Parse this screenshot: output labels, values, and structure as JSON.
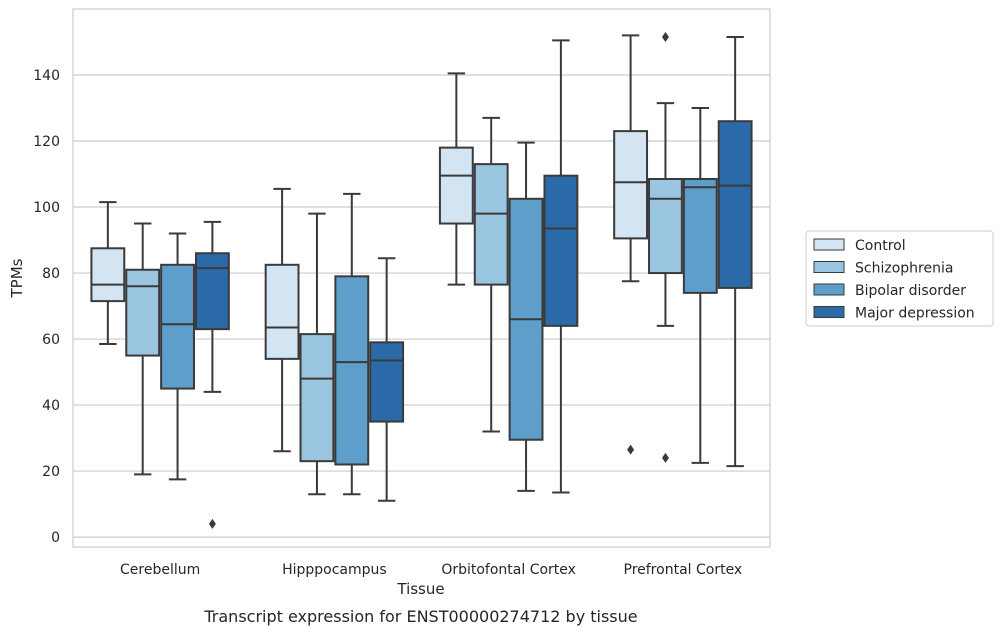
{
  "chart_data": {
    "type": "box",
    "xlabel": "Tissue",
    "ylabel": "TPMs",
    "caption": "Transcript expression for ENST00000274712 by tissue",
    "categories": [
      "Cerebellum",
      "Hipppocampus",
      "Orbitofontal Cortex",
      "Prefrontal Cortex"
    ],
    "ylim": [
      -3,
      160
    ],
    "yticks": [
      0,
      20,
      40,
      60,
      80,
      100,
      120,
      140
    ],
    "grid": "horizontal",
    "legend_position": "right",
    "series": [
      {
        "name": "Control",
        "color": "#d3e4f3",
        "boxes": [
          {
            "whislo": 58.5,
            "q1": 71.5,
            "med": 76.5,
            "q3": 87.5,
            "whishi": 101.5,
            "fliers": []
          },
          {
            "whislo": 26,
            "q1": 54,
            "med": 63.5,
            "q3": 82.5,
            "whishi": 105.5,
            "fliers": []
          },
          {
            "whislo": 76.5,
            "q1": 95,
            "med": 109.5,
            "q3": 118,
            "whishi": 140.5,
            "fliers": []
          },
          {
            "whislo": 77.5,
            "q1": 90.5,
            "med": 107.5,
            "q3": 123,
            "whishi": 152,
            "fliers": [
              26.5
            ]
          }
        ]
      },
      {
        "name": "Schizophrenia",
        "color": "#9ac5e0",
        "boxes": [
          {
            "whislo": 19,
            "q1": 55,
            "med": 76,
            "q3": 81,
            "whishi": 95,
            "fliers": []
          },
          {
            "whislo": 13,
            "q1": 23,
            "med": 48,
            "q3": 61.5,
            "whishi": 98,
            "fliers": []
          },
          {
            "whislo": 32,
            "q1": 76.5,
            "med": 98,
            "q3": 113,
            "whishi": 127,
            "fliers": []
          },
          {
            "whislo": 64,
            "q1": 80,
            "med": 102.5,
            "q3": 108.5,
            "whishi": 131.5,
            "fliers": [
              24,
              151.5
            ]
          }
        ]
      },
      {
        "name": "Bipolar disorder",
        "color": "#5d9ecb",
        "boxes": [
          {
            "whislo": 17.5,
            "q1": 45,
            "med": 64.5,
            "q3": 82.5,
            "whishi": 92,
            "fliers": []
          },
          {
            "whislo": 13,
            "q1": 22,
            "med": 53,
            "q3": 79,
            "whishi": 104,
            "fliers": []
          },
          {
            "whislo": 14,
            "q1": 29.5,
            "med": 66,
            "q3": 102.5,
            "whishi": 119.5,
            "fliers": []
          },
          {
            "whislo": 22.5,
            "q1": 74,
            "med": 106,
            "q3": 108.5,
            "whishi": 130,
            "fliers": []
          }
        ]
      },
      {
        "name": "Major depression",
        "color": "#2b6aa9",
        "boxes": [
          {
            "whislo": 44,
            "q1": 63,
            "med": 81.5,
            "q3": 86,
            "whishi": 95.5,
            "fliers": [
              4
            ]
          },
          {
            "whislo": 11,
            "q1": 35,
            "med": 53.5,
            "q3": 59,
            "whishi": 84.5,
            "fliers": []
          },
          {
            "whislo": 13.5,
            "q1": 64,
            "med": 93.5,
            "q3": 109.5,
            "whishi": 150.5,
            "fliers": []
          },
          {
            "whislo": 21.5,
            "q1": 75.5,
            "med": 106.5,
            "q3": 126,
            "whishi": 151.5,
            "fliers": []
          }
        ]
      }
    ]
  },
  "style": {
    "grid_color": "#cccccc",
    "frame_color": "#cccccc",
    "line_color": "#3a3a3a",
    "text_color": "#262626"
  }
}
